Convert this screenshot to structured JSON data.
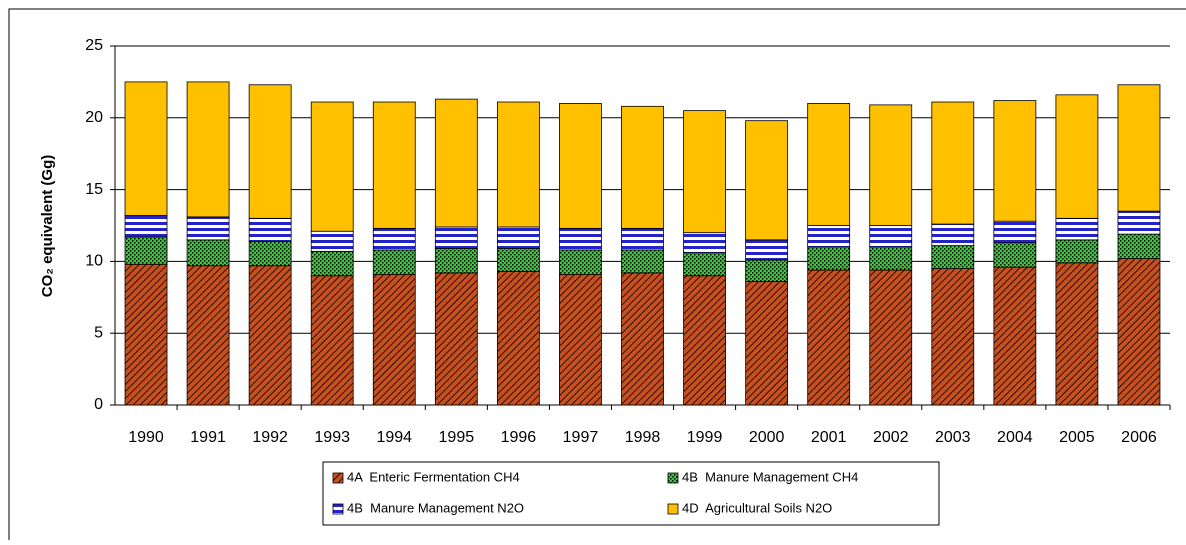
{
  "chart_data": {
    "type": "stacked-bar",
    "y_label": "CO₂ equivalent (Gg)",
    "categories": [
      "1990",
      "1991",
      "1992",
      "1993",
      "1994",
      "1995",
      "1996",
      "1997",
      "1998",
      "1999",
      "2000",
      "2001",
      "2002",
      "2003",
      "2004",
      "2005",
      "2006"
    ],
    "series": [
      {
        "name": "4A  Enteric Fermentation CH4",
        "color": "#c8501e",
        "pattern": "diagonal",
        "values": [
          9.8,
          9.7,
          9.7,
          9.0,
          9.1,
          9.2,
          9.3,
          9.1,
          9.2,
          9.0,
          8.6,
          9.4,
          9.4,
          9.5,
          9.6,
          9.9,
          10.2
        ]
      },
      {
        "name": "4B  Manure Management CH4",
        "color": "#33cc33",
        "pattern": "dots",
        "values": [
          1.9,
          1.8,
          1.7,
          1.7,
          1.7,
          1.7,
          1.6,
          1.7,
          1.6,
          1.6,
          1.5,
          1.6,
          1.6,
          1.6,
          1.7,
          1.6,
          1.7
        ]
      },
      {
        "name": "4B  Manure Management N2O",
        "color": "#2323c8",
        "pattern": "horizontal",
        "values": [
          1.5,
          1.6,
          1.6,
          1.4,
          1.5,
          1.5,
          1.5,
          1.5,
          1.5,
          1.4,
          1.4,
          1.5,
          1.5,
          1.5,
          1.5,
          1.5,
          1.6
        ]
      },
      {
        "name": "4D  Agricultural Soils N2O",
        "color": "#ffc000",
        "pattern": "solid",
        "values": [
          9.3,
          9.4,
          9.3,
          9.0,
          8.8,
          8.9,
          8.7,
          8.7,
          8.5,
          8.5,
          8.3,
          8.5,
          8.4,
          8.5,
          8.4,
          8.6,
          8.8
        ]
      }
    ],
    "ylim": [
      0,
      25
    ],
    "yticks": [
      0,
      5,
      10,
      15,
      20,
      25
    ],
    "grid": true
  }
}
